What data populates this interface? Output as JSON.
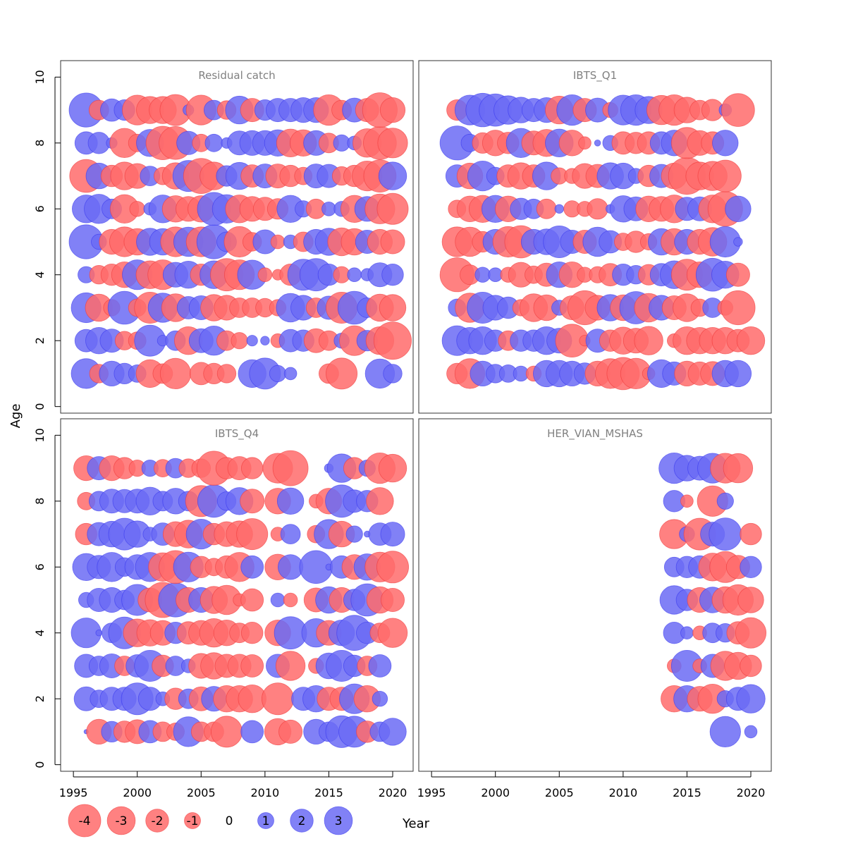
{
  "chart_data": {
    "type": "scatter",
    "subtype": "bubble-residuals",
    "xlabel": "Year",
    "ylabel": "Age",
    "x_ticks": [
      1995,
      2000,
      2005,
      2010,
      2015,
      2020
    ],
    "y_ticks": [
      0,
      2,
      4,
      6,
      8,
      10
    ],
    "xlim": [
      1994,
      2022
    ],
    "ylim": [
      -0.2,
      10.5
    ],
    "colors": {
      "positive": "#6b6bf5",
      "negative": "#ff6b6b",
      "positive_stroke": "#3333ee",
      "negative_stroke": "#ee3333"
    },
    "legend": [
      {
        "label": "-4",
        "value": -4
      },
      {
        "label": "-3",
        "value": -3
      },
      {
        "label": "-2",
        "value": -2
      },
      {
        "label": "-1",
        "value": -1
      },
      {
        "label": "0",
        "value": 0
      },
      {
        "label": "1",
        "value": 1
      },
      {
        "label": "2",
        "value": 2
      },
      {
        "label": "3",
        "value": 3
      }
    ],
    "panels": [
      {
        "title": "Residual catch",
        "years": [
          1996,
          1997,
          1998,
          1999,
          2000,
          2001,
          2002,
          2003,
          2004,
          2005,
          2006,
          2007,
          2008,
          2009,
          2010,
          2011,
          2012,
          2013,
          2014,
          2015,
          2016,
          2017,
          2018,
          2019,
          2020
        ],
        "ages": {
          "1": [
            2.3,
            -0.9,
            1.6,
            1.1,
            0.8,
            -2.0,
            -1.0,
            -2.4,
            null,
            -1.3,
            -1.1,
            -0.9,
            null,
            2.0,
            2.5,
            0.7,
            0.4,
            null,
            null,
            -1.0,
            -2.5,
            null,
            null,
            2.2,
            0.9
          ],
          "2": [
            1.3,
            1.8,
            1.4,
            -0.9,
            -0.8,
            2.5,
            0.3,
            1.0,
            -2.0,
            1.5,
            2.2,
            -1.0,
            -0.7,
            0.3,
            0.2,
            -0.5,
            1.3,
            1.2,
            -1.5,
            -1.0,
            0.6,
            -2.3,
            1.1,
            -2.0,
            -3.6
          ],
          "3": [
            2.3,
            -1.9,
            -0.7,
            2.8,
            -0.8,
            -2.5,
            2.2,
            -2.0,
            1.3,
            1.5,
            -1.8,
            -1.6,
            -1.0,
            -1.0,
            -0.9,
            -0.7,
            2.1,
            1.6,
            -1.0,
            1.4,
            -2.5,
            2.8,
            1.0,
            -1.9,
            -1.8
          ],
          "4": [
            0.7,
            -0.9,
            -1.2,
            -1.7,
            2.3,
            -2.0,
            -2.3,
            1.6,
            1.9,
            -1.2,
            2.0,
            -2.7,
            -2.3,
            2.2,
            -0.5,
            -0.3,
            -1.2,
            2.5,
            2.7,
            1.2,
            -0.7,
            0.5,
            0.4,
            1.5,
            1.2
          ],
          "5": [
            3.0,
            0.6,
            -1.6,
            -2.3,
            -1.8,
            1.9,
            1.8,
            -2.3,
            2.2,
            -2.3,
            3.0,
            1.0,
            -2.4,
            -0.9,
            1.5,
            -0.5,
            0.5,
            -1.0,
            1.6,
            1.9,
            -2.0,
            -1.8,
            1.4,
            -1.6,
            -1.5
          ],
          "6": [
            2.0,
            2.2,
            1.0,
            -2.1,
            -0.6,
            0.4,
            2.0,
            -1.8,
            -1.6,
            -1.8,
            2.8,
            2.1,
            -2.0,
            -1.6,
            -1.4,
            -1.1,
            1.9,
            0.7,
            -1.0,
            0.5,
            0.6,
            -1.9,
            1.6,
            -2.3,
            -2.5
          ],
          "7": [
            -2.8,
            1.7,
            -1.2,
            -2.0,
            -1.6,
            1.0,
            -0.8,
            -1.8,
            2.5,
            -3.2,
            -2.0,
            1.1,
            1.9,
            -1.3,
            1.5,
            -1.5,
            -1.2,
            -0.8,
            1.5,
            1.4,
            -0.9,
            -1.2,
            -2.3,
            -2.7,
            2.0
          ],
          "8": [
            1.3,
            1.2,
            0.3,
            -2.2,
            -0.8,
            1.9,
            -2.9,
            -2.8,
            1.4,
            -0.8,
            0.8,
            0.3,
            1.5,
            1.6,
            1.6,
            1.8,
            -2.0,
            -1.8,
            1.6,
            -1.0,
            0.7,
            0.5,
            -2.1,
            -2.8,
            -2.3
          ],
          "9": [
            3.0,
            -1.0,
            1.3,
            1.1,
            -2.3,
            -1.9,
            -1.9,
            -2.5,
            0.3,
            -2.3,
            1.0,
            -0.9,
            2.0,
            -1.4,
            1.1,
            1.4,
            1.4,
            1.6,
            1.6,
            -2.4,
            -1.0,
            1.5,
            -1.4,
            -3.1,
            -1.6
          ]
        }
      },
      {
        "title": "IBTS_Q1",
        "years": [
          1997,
          1998,
          1999,
          2000,
          2001,
          2002,
          2003,
          2004,
          2005,
          2006,
          2007,
          2008,
          2009,
          2010,
          2011,
          2012,
          2013,
          2014,
          2015,
          2016,
          2017,
          2018,
          2019,
          2020
        ],
        "ages": {
          "1": [
            -1.1,
            -2.3,
            1.6,
            0.9,
            0.8,
            0.6,
            -0.6,
            1.8,
            1.8,
            1.6,
            1.2,
            -1.6,
            -2.3,
            -2.7,
            -2.4,
            -0.4,
            2.0,
            1.4,
            -1.6,
            -1.4,
            -1.5,
            1.8,
            1.8,
            null
          ],
          "2": [
            2.3,
            1.8,
            2.0,
            1.2,
            -1.0,
            1.2,
            1.2,
            2.0,
            1.6,
            -2.8,
            -0.3,
            1.4,
            -1.2,
            -1.9,
            -1.6,
            -2.1,
            null,
            -0.5,
            -2.0,
            -1.8,
            -1.8,
            -1.8,
            -1.3,
            -2.0
          ],
          "3": [
            0.8,
            -2.2,
            2.5,
            1.6,
            1.2,
            -0.7,
            -2.0,
            -1.7,
            0.6,
            -1.5,
            -3.0,
            -1.6,
            1.8,
            -1.7,
            2.7,
            -2.1,
            1.6,
            -1.5,
            -2.0,
            -0.8,
            1.0,
            -0.6,
            -3.0,
            null
          ],
          "4": [
            -3.0,
            -1.0,
            0.6,
            0.5,
            -0.6,
            -1.6,
            -0.8,
            -1.4,
            1.7,
            -1.7,
            -0.6,
            -0.7,
            -1.3,
            1.2,
            0.9,
            -1.1,
            1.3,
            2.0,
            -2.5,
            -1.7,
            2.8,
            1.9,
            -1.4,
            null
          ],
          "5": [
            -2.3,
            -2.2,
            -1.1,
            1.6,
            -2.4,
            -2.7,
            1.6,
            1.7,
            2.6,
            1.4,
            -1.4,
            2.2,
            1.3,
            -0.8,
            -1.2,
            -0.7,
            1.8,
            -1.8,
            1.6,
            -1.6,
            -2.1,
            2.4,
            0.2,
            null
          ],
          "6": [
            -0.8,
            -1.7,
            -1.9,
            1.9,
            -1.7,
            1.2,
            1.0,
            -1.0,
            0.2,
            -0.7,
            -0.6,
            -1.1,
            0.2,
            1.8,
            1.5,
            -1.7,
            -1.6,
            -2.0,
            1.4,
            1.5,
            -2.0,
            -3.1,
            1.7,
            null
          ],
          "7": [
            1.3,
            -1.7,
            2.3,
            0.8,
            -1.3,
            -1.8,
            -1.3,
            2.0,
            -0.7,
            -0.6,
            -1.6,
            -1.4,
            1.8,
            1.7,
            0.6,
            -1.2,
            1.4,
            -1.7,
            -3.5,
            -2.0,
            -2.2,
            -2.6,
            null,
            null
          ],
          "8": [
            3.0,
            0.8,
            -1.1,
            -1.7,
            -1.2,
            2.2,
            -1.5,
            -1.9,
            2.0,
            -1.7,
            -0.4,
            0.1,
            0.6,
            -1.3,
            -1.2,
            -1.3,
            1.3,
            1.7,
            -2.5,
            -1.6,
            -1.3,
            1.7,
            null,
            null
          ],
          "9": [
            -1.1,
            2.3,
            2.9,
            2.7,
            2.1,
            1.7,
            1.4,
            1.6,
            -2.0,
            2.4,
            -1.4,
            1.5,
            -0.6,
            2.3,
            2.4,
            1.9,
            -2.2,
            -2.4,
            -1.7,
            -1.0,
            -1.2,
            0.4,
            -2.8,
            null
          ]
        }
      },
      {
        "title": "IBTS_Q4",
        "years": [
          1996,
          1997,
          1998,
          1999,
          2000,
          2001,
          2002,
          2003,
          2004,
          2005,
          2006,
          2007,
          2008,
          2009,
          2010,
          2011,
          2012,
          2013,
          2014,
          2015,
          2016,
          2017,
          2018,
          2019,
          2020
        ],
        "ages": {
          "1": [
            0.05,
            -1.6,
            1.1,
            -1.2,
            -1.5,
            1.3,
            -1.0,
            -0.8,
            2.3,
            -1.0,
            -1.0,
            -2.5,
            null,
            1.3,
            null,
            -1.8,
            -1.4,
            null,
            1.6,
            1.0,
            2.6,
            2.5,
            -1.2,
            1.0,
            1.9
          ],
          "2": [
            1.5,
            0.8,
            1.4,
            1.4,
            2.6,
            1.4,
            0.5,
            -1.2,
            1.0,
            -1.5,
            1.6,
            -1.8,
            -1.8,
            -2.0,
            null,
            -2.6,
            null,
            1.4,
            1.8,
            -1.4,
            -1.4,
            2.3,
            -1.8,
            0.6,
            null
          ],
          "3": [
            1.4,
            1.0,
            1.5,
            -1.0,
            1.3,
            2.5,
            -1.2,
            1.0,
            0.5,
            -1.6,
            -1.8,
            -1.4,
            -1.4,
            -1.3,
            null,
            1.4,
            -2.2,
            null,
            -0.6,
            1.7,
            2.5,
            1.2,
            -1.0,
            1.3,
            null
          ],
          "4": [
            2.3,
            0.1,
            1.0,
            2.6,
            -2.0,
            -1.8,
            -1.6,
            1.2,
            -1.3,
            -1.6,
            -2.1,
            -1.7,
            -1.0,
            -1.2,
            null,
            -1.7,
            2.7,
            null,
            2.1,
            -1.6,
            1.7,
            3.2,
            1.2,
            -1.0,
            -2.2
          ],
          "5": [
            0.6,
            1.4,
            1.6,
            1.0,
            2.5,
            -1.5,
            -3.2,
            3.0,
            -1.6,
            1.6,
            -1.9,
            -2.2,
            -0.4,
            -1.3,
            null,
            0.5,
            -0.5,
            null,
            -1.5,
            1.8,
            -1.6,
            1.2,
            2.7,
            -1.8,
            -1.4
          ],
          "6": [
            1.9,
            1.4,
            2.2,
            0.9,
            1.6,
            2.2,
            -2.1,
            -2.8,
            2.3,
            -1.2,
            -0.8,
            -1.3,
            -2.2,
            1.3,
            null,
            -1.7,
            1.6,
            null,
            2.8,
            0.1,
            1.3,
            -1.6,
            1.8,
            -2.3,
            -2.6
          ],
          "7": [
            -1.2,
            1.4,
            1.7,
            2.6,
            1.8,
            0.5,
            1.3,
            -1.6,
            -2.0,
            2.3,
            -1.2,
            -1.6,
            -1.8,
            -2.5,
            null,
            -0.5,
            1.0,
            null,
            -0.8,
            2.2,
            -1.7,
            0.7,
            0.1,
            1.3,
            1.5
          ],
          "8": [
            -0.8,
            1.0,
            1.5,
            1.4,
            1.5,
            2.0,
            1.0,
            1.7,
            1.0,
            -2.5,
            2.7,
            0.9,
            1.9,
            -1.5,
            null,
            -1.7,
            1.8,
            null,
            -0.5,
            -1.7,
            2.7,
            1.3,
            1.2,
            -1.9,
            null
          ],
          "9": [
            -1.6,
            1.4,
            -1.6,
            -1.2,
            -0.7,
            0.7,
            -0.8,
            1.0,
            -0.9,
            -0.9,
            -3.0,
            -1.2,
            -1.4,
            -1.2,
            null,
            -2.3,
            -3.2,
            null,
            null,
            0.2,
            2.1,
            -1.2,
            0.7,
            -2.4,
            -2.0
          ]
        }
      },
      {
        "title": "HER_VIAN_MSHAS",
        "years": [
          2014,
          2015,
          2016,
          2017,
          2018,
          2019,
          2020
        ],
        "ages": {
          "1": [
            null,
            null,
            null,
            null,
            2.4,
            null,
            0.4
          ],
          "2": [
            -1.8,
            1.8,
            -1.6,
            -2.2,
            0.7,
            1.4,
            2.1
          ],
          "3": [
            -0.5,
            2.5,
            -0.5,
            1.4,
            -2.2,
            -1.9,
            -1.2
          ],
          "4": [
            1.2,
            0.4,
            -0.5,
            1.0,
            0.9,
            -1.3,
            -2.4
          ],
          "5": [
            2.1,
            1.2,
            -1.6,
            1.7,
            -1.8,
            -2.4,
            -1.7
          ],
          "6": [
            1.0,
            1.2,
            1.3,
            -2.0,
            -2.5,
            -1.4,
            1.2
          ],
          "7": [
            -2.2,
            0.6,
            -2.6,
            1.5,
            2.7,
            null,
            -1.2
          ],
          "8": [
            1.2,
            -0.4,
            null,
            -2.4,
            0.7,
            null,
            null
          ],
          "9": [
            2.4,
            1.7,
            1.5,
            2.3,
            -2.3,
            -2.2,
            null
          ]
        }
      }
    ]
  }
}
